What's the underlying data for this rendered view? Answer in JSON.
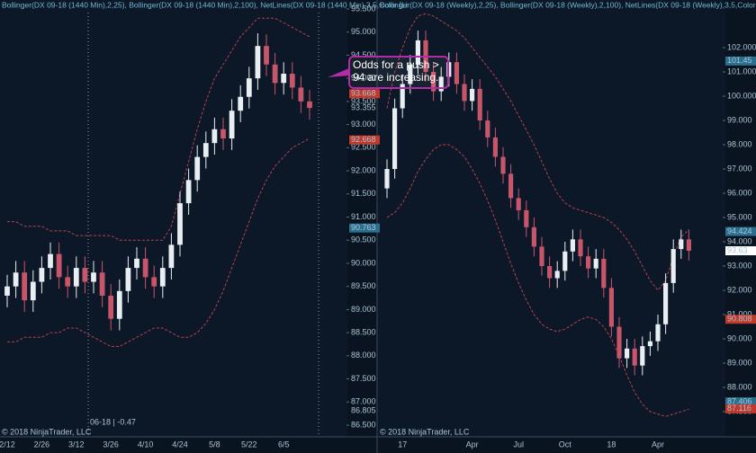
{
  "chart_data": [
    {
      "type": "candlestick",
      "title": "Bollinger(DX 09-18 (1440 Min),2,25), Bollinger(DX 09-18 (1440 Min),2,100), NetLines(DX 09-18 (1440 Min),3,5,Color [Li",
      "categories": [
        "2/12",
        null,
        null,
        null,
        "2/26",
        null,
        null,
        null,
        "3/12",
        null,
        null,
        null,
        "3/26",
        null,
        null,
        null,
        "4/10",
        null,
        null,
        null,
        "4/24",
        null,
        null,
        null,
        "5/8",
        null,
        null,
        null,
        "5/22",
        null,
        null,
        null,
        "6/5",
        null,
        null,
        null
      ],
      "open": [
        89.3,
        89.5,
        89.8,
        89.2,
        89.6,
        89.9,
        90.2,
        89.7,
        89.5,
        89.9,
        89.6,
        89.8,
        89.3,
        88.8,
        89.4,
        89.9,
        90.1,
        89.7,
        89.5,
        89.9,
        90.4,
        91.3,
        91.8,
        92.3,
        92.6,
        92.9,
        92.7,
        93.3,
        93.6,
        94.0,
        94.7,
        94.3,
        93.9,
        94.1,
        93.8,
        93.5
      ],
      "high": [
        89.75,
        90.05,
        90.05,
        89.85,
        90.15,
        90.45,
        90.45,
        89.95,
        90.15,
        90.15,
        90.05,
        90.05,
        89.55,
        89.65,
        90.15,
        90.35,
        90.35,
        89.95,
        90.15,
        90.65,
        91.55,
        92.05,
        92.55,
        92.85,
        93.15,
        93.15,
        93.55,
        93.85,
        94.25,
        94.975,
        94.95,
        94.55,
        94.35,
        94.35,
        94.05,
        93.75
      ],
      "low": [
        89.05,
        89.25,
        88.95,
        88.95,
        89.35,
        89.65,
        89.45,
        89.25,
        89.25,
        89.35,
        89.35,
        89.05,
        88.55,
        88.55,
        89.15,
        89.65,
        89.45,
        89.25,
        89.25,
        89.65,
        90.15,
        91.05,
        91.55,
        92.05,
        92.35,
        92.45,
        92.45,
        93.05,
        93.35,
        93.75,
        94.05,
        93.65,
        93.65,
        93.55,
        93.25,
        93.11
      ],
      "close": [
        89.5,
        89.8,
        89.2,
        89.6,
        89.9,
        90.2,
        89.7,
        89.5,
        89.9,
        89.6,
        89.8,
        89.3,
        88.8,
        89.4,
        89.9,
        90.1,
        89.7,
        89.5,
        89.9,
        90.4,
        91.3,
        91.8,
        92.3,
        92.6,
        92.9,
        92.7,
        93.3,
        93.6,
        94.0,
        94.7,
        94.3,
        93.9,
        94.1,
        93.8,
        93.5,
        93.36
      ],
      "up_color": "#e8eef2",
      "down_color": "#c8566a",
      "series": [
        {
          "color": "#b8404f",
          "values": [
            90.9,
            90.9,
            90.8,
            90.8,
            90.8,
            90.7,
            90.7,
            90.7,
            90.6,
            90.6,
            90.6,
            90.6,
            90.6,
            90.5,
            90.5,
            90.5,
            90.5,
            90.5,
            90.5,
            90.8,
            91.5,
            92.2,
            92.9,
            93.5,
            94.0,
            94.3,
            94.6,
            94.9,
            95.1,
            95.3,
            95.3,
            95.3,
            95.2,
            95.1,
            95.0,
            94.9
          ]
        },
        {
          "color": "#b8404f",
          "values": [
            88.3,
            88.3,
            88.4,
            88.4,
            88.4,
            88.5,
            88.5,
            88.6,
            88.6,
            88.5,
            88.4,
            88.3,
            88.2,
            88.2,
            88.3,
            88.4,
            88.5,
            88.6,
            88.6,
            88.5,
            88.4,
            88.4,
            88.5,
            88.7,
            89.0,
            89.4,
            89.9,
            90.4,
            90.9,
            91.4,
            91.8,
            92.1,
            92.3,
            92.5,
            92.6,
            92.7
          ]
        }
      ],
      "ylim": [
        86.5,
        95.5
      ],
      "yticks": [
        {
          "value": 95.5,
          "label": "95.500"
        },
        {
          "value": 95,
          "label": "95.000"
        },
        {
          "value": 94.5,
          "label": "94.500"
        },
        {
          "value": 94,
          "label": "94.000"
        },
        {
          "value": 93.5,
          "label": "93.500"
        },
        {
          "value": 93,
          "label": "93.000"
        },
        {
          "value": 92.5,
          "label": "92.500"
        },
        {
          "value": 92,
          "label": "92.000"
        },
        {
          "value": 91.5,
          "label": "91.500"
        },
        {
          "value": 91,
          "label": "91.000"
        },
        {
          "value": 90.5,
          "label": "90.500"
        },
        {
          "value": 90,
          "label": "90.000"
        },
        {
          "value": 89.5,
          "label": "89.500"
        },
        {
          "value": 89,
          "label": "89.000"
        },
        {
          "value": 88.5,
          "label": "88.500"
        },
        {
          "value": 88,
          "label": "88.000"
        },
        {
          "value": 87.5,
          "label": "87.500"
        },
        {
          "value": 87,
          "label": "87.000"
        },
        {
          "value": 86.5,
          "label": "86.500"
        }
      ],
      "price_markers": [
        {
          "value": 93.668,
          "color": "#c0392b"
        },
        {
          "value": 93.355,
          "color": null
        },
        {
          "value": 92.668,
          "color": "#c0392b"
        },
        {
          "value": 90.763,
          "color": "#2b6f8f"
        },
        {
          "value": 86.805,
          "color": null
        }
      ],
      "footer": "© 2018 NinjaTrader, LLC",
      "contract_label": "06-18 | -0.47"
    },
    {
      "type": "candlestick",
      "title": "Bollinger(DX 09-18 (Weekly),2,25), Bollinger(DX 09-18 (Weekly),2,100), NetLines(DX 09-18 (Weekly),3,5,Color [Light",
      "categories": [
        null,
        null,
        "17",
        null,
        null,
        null,
        null,
        null,
        null,
        null,
        null,
        "Apr",
        null,
        null,
        null,
        null,
        null,
        "Jul",
        null,
        null,
        null,
        null,
        null,
        "Oct",
        null,
        null,
        null,
        null,
        null,
        "18",
        null,
        null,
        null,
        null,
        null,
        "Apr",
        null,
        null,
        null,
        null
      ],
      "open": [
        96.2,
        97.0,
        99.5,
        100.5,
        101.3,
        102.3,
        101.0,
        100.2,
        100.8,
        101.4,
        100.5,
        99.8,
        100.3,
        99.0,
        98.3,
        97.5,
        96.8,
        95.8,
        95.3,
        94.6,
        93.8,
        93.0,
        92.5,
        92.8,
        93.6,
        94.1,
        93.4,
        92.9,
        93.3,
        92.1,
        90.5,
        89.2,
        89.6,
        88.9,
        89.7,
        89.9,
        90.6,
        92.3,
        93.7,
        94.1
      ],
      "high": [
        97.4,
        99.9,
        100.9,
        101.7,
        102.7,
        102.7,
        101.4,
        101.2,
        101.8,
        101.8,
        100.9,
        100.7,
        100.7,
        99.4,
        98.7,
        97.9,
        97.2,
        96.2,
        95.7,
        95.0,
        94.2,
        93.4,
        93.2,
        94.0,
        94.5,
        94.5,
        93.8,
        93.7,
        93.7,
        92.5,
        90.9,
        90.0,
        90.0,
        90.1,
        90.3,
        91.0,
        92.7,
        94.1,
        94.5,
        94.5
      ],
      "low": [
        95.8,
        96.6,
        99.1,
        100.1,
        100.9,
        100.6,
        99.8,
        99.8,
        100.4,
        100.1,
        99.4,
        99.4,
        98.6,
        97.9,
        97.1,
        96.4,
        95.4,
        94.9,
        94.2,
        93.4,
        92.6,
        92.1,
        92.1,
        92.4,
        93.2,
        93.0,
        92.5,
        92.5,
        91.7,
        90.1,
        88.8,
        88.8,
        88.5,
        88.5,
        89.3,
        89.5,
        90.2,
        91.9,
        93.3,
        93.23
      ],
      "close": [
        97.0,
        99.5,
        100.5,
        101.3,
        102.3,
        101.0,
        100.2,
        100.8,
        101.4,
        100.5,
        99.8,
        100.3,
        99.0,
        98.3,
        97.5,
        96.8,
        95.8,
        95.3,
        94.6,
        93.8,
        93.0,
        92.5,
        92.8,
        93.6,
        94.1,
        93.4,
        92.9,
        93.3,
        92.1,
        90.5,
        89.2,
        89.6,
        88.9,
        89.7,
        89.9,
        90.6,
        92.3,
        93.7,
        94.1,
        93.63
      ],
      "up_color": "#e8eef2",
      "down_color": "#c8566a",
      "series": [
        {
          "color": "#b8404f",
          "values": [
            99.5,
            101.0,
            102.0,
            102.8,
            103.3,
            103.4,
            103.3,
            103.1,
            102.9,
            102.7,
            102.4,
            102.0,
            101.6,
            101.2,
            100.8,
            100.3,
            99.8,
            99.2,
            98.6,
            98.0,
            97.3,
            96.6,
            96.0,
            95.6,
            95.4,
            95.3,
            95.2,
            95.1,
            95.0,
            94.8,
            94.5,
            94.1,
            93.6,
            93.0,
            92.4,
            92.0,
            92.4,
            93.4,
            94.2,
            94.5
          ]
        },
        {
          "color": "#b8404f",
          "values": [
            95.0,
            95.2,
            95.6,
            96.2,
            96.9,
            97.4,
            97.8,
            98.0,
            98.0,
            97.8,
            97.5,
            97.0,
            96.4,
            95.7,
            94.9,
            94.0,
            93.1,
            92.3,
            91.6,
            91.0,
            90.6,
            90.4,
            90.3,
            90.4,
            90.6,
            90.8,
            90.9,
            90.8,
            90.5,
            90.0,
            89.3,
            88.5,
            87.8,
            87.3,
            87.0,
            86.9,
            86.8,
            86.9,
            87.0,
            87.1
          ]
        }
      ],
      "ylim": [
        86.5,
        103.5
      ],
      "yticks": [
        {
          "value": 102,
          "label": "102.000"
        },
        {
          "value": 101,
          "label": "101.000"
        },
        {
          "value": 100,
          "label": "100.000"
        },
        {
          "value": 99,
          "label": "99.000"
        },
        {
          "value": 98,
          "label": "98.000"
        },
        {
          "value": 97,
          "label": "97.000"
        },
        {
          "value": 96,
          "label": "96.000"
        },
        {
          "value": 95,
          "label": "95.000"
        },
        {
          "value": 94,
          "label": "94.000"
        },
        {
          "value": 93,
          "label": "93.000"
        },
        {
          "value": 92,
          "label": "92.000"
        },
        {
          "value": 91,
          "label": "91.000"
        },
        {
          "value": 90,
          "label": "90.000"
        },
        {
          "value": 89,
          "label": "89.000"
        },
        {
          "value": 88,
          "label": "88.000"
        },
        {
          "value": 87,
          "label": "87.000"
        }
      ],
      "price_markers": [
        {
          "value": 101.45,
          "color": "#2b6f8f"
        },
        {
          "value": 94.424,
          "color": "#2b6f8f"
        },
        {
          "value": 93.63,
          "color": "#ffffff"
        },
        {
          "value": 90.808,
          "color": "#c0392b"
        },
        {
          "value": 87.406,
          "color": "#2b6f8f"
        },
        {
          "value": 87.116,
          "color": "#c0392b"
        }
      ],
      "footer": "© 2018 NinjaTrader, LLC"
    }
  ],
  "annotation": "Odds for a push > 94 are increasing."
}
